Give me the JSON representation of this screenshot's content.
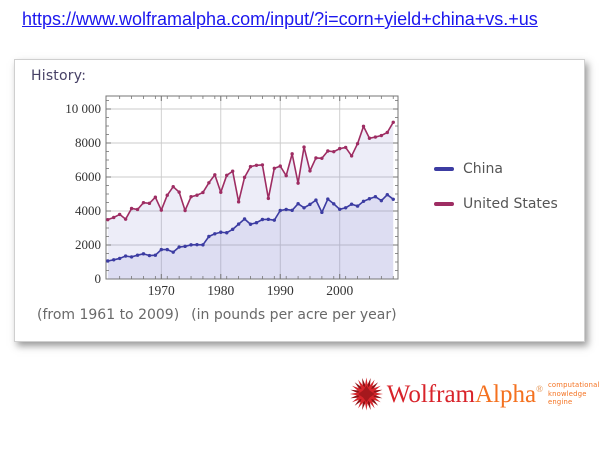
{
  "page": {
    "url": "https://www.wolframalpha.com/input/?i=corn+yield+china+vs.+us"
  },
  "panel": {
    "title": "History:",
    "caption_range": "(from 1961 to 2009)",
    "caption_units": "(in pounds per acre per year)"
  },
  "chart_data": {
    "type": "line",
    "title": "History",
    "xlabel": "",
    "ylabel": "",
    "units": "pounds per acre per year",
    "x": [
      1961,
      1962,
      1963,
      1964,
      1965,
      1966,
      1967,
      1968,
      1969,
      1970,
      1971,
      1972,
      1973,
      1974,
      1975,
      1976,
      1977,
      1978,
      1979,
      1980,
      1981,
      1982,
      1983,
      1984,
      1985,
      1986,
      1987,
      1988,
      1989,
      1990,
      1991,
      1992,
      1993,
      1994,
      1995,
      1996,
      1997,
      1998,
      1999,
      2000,
      2001,
      2002,
      2003,
      2004,
      2005,
      2006,
      2007,
      2008,
      2009
    ],
    "series": [
      {
        "name": "China",
        "color": "#3c3ca2",
        "values": [
          1060,
          1130,
          1210,
          1350,
          1300,
          1400,
          1480,
          1380,
          1400,
          1730,
          1730,
          1580,
          1880,
          1920,
          2010,
          2020,
          2010,
          2500,
          2660,
          2750,
          2720,
          2920,
          3230,
          3530,
          3220,
          3310,
          3500,
          3510,
          3460,
          4030,
          4090,
          4040,
          4430,
          4190,
          4390,
          4640,
          3920,
          4700,
          4420,
          4100,
          4190,
          4400,
          4290,
          4570,
          4720,
          4840,
          4610,
          4960,
          4690
        ]
      },
      {
        "name": "United States",
        "color": "#9e2d63",
        "values": [
          3490,
          3620,
          3800,
          3520,
          4150,
          4090,
          4490,
          4450,
          4810,
          4050,
          4930,
          5430,
          5110,
          4030,
          4840,
          4930,
          5090,
          5660,
          6130,
          5100,
          6100,
          6340,
          4540,
          5980,
          6610,
          6690,
          6710,
          4740,
          6510,
          6640,
          6080,
          7360,
          5640,
          7760,
          6360,
          7120,
          7100,
          7530,
          7490,
          7670,
          7740,
          7240,
          7960,
          8980,
          8280,
          8350,
          8440,
          8620,
          9220
        ]
      }
    ],
    "xlim": [
      1960.7,
      2009.8
    ],
    "ylim": [
      0,
      10765
    ],
    "xticks": [
      1970,
      1980,
      1990,
      2000
    ],
    "yticks": [
      0,
      2000,
      4000,
      6000,
      8000,
      10000
    ],
    "ytick_labels": [
      "0",
      "2000",
      "4000",
      "6000",
      "8000",
      "10 000"
    ],
    "grid": true,
    "grid_color": "#cbcbcb",
    "frame_color": "#757575",
    "fill": "rgba(125,125,205,0.14)",
    "legend_position": "right"
  },
  "logo": {
    "brand_word1": "Wolfram",
    "brand_word2": "Alpha",
    "registered": "®",
    "tagline_line1": "computational",
    "trademark": "™",
    "tagline_line2": "knowledge engine",
    "word1_color": "#d8232a",
    "word2_color": "#f4711f"
  }
}
